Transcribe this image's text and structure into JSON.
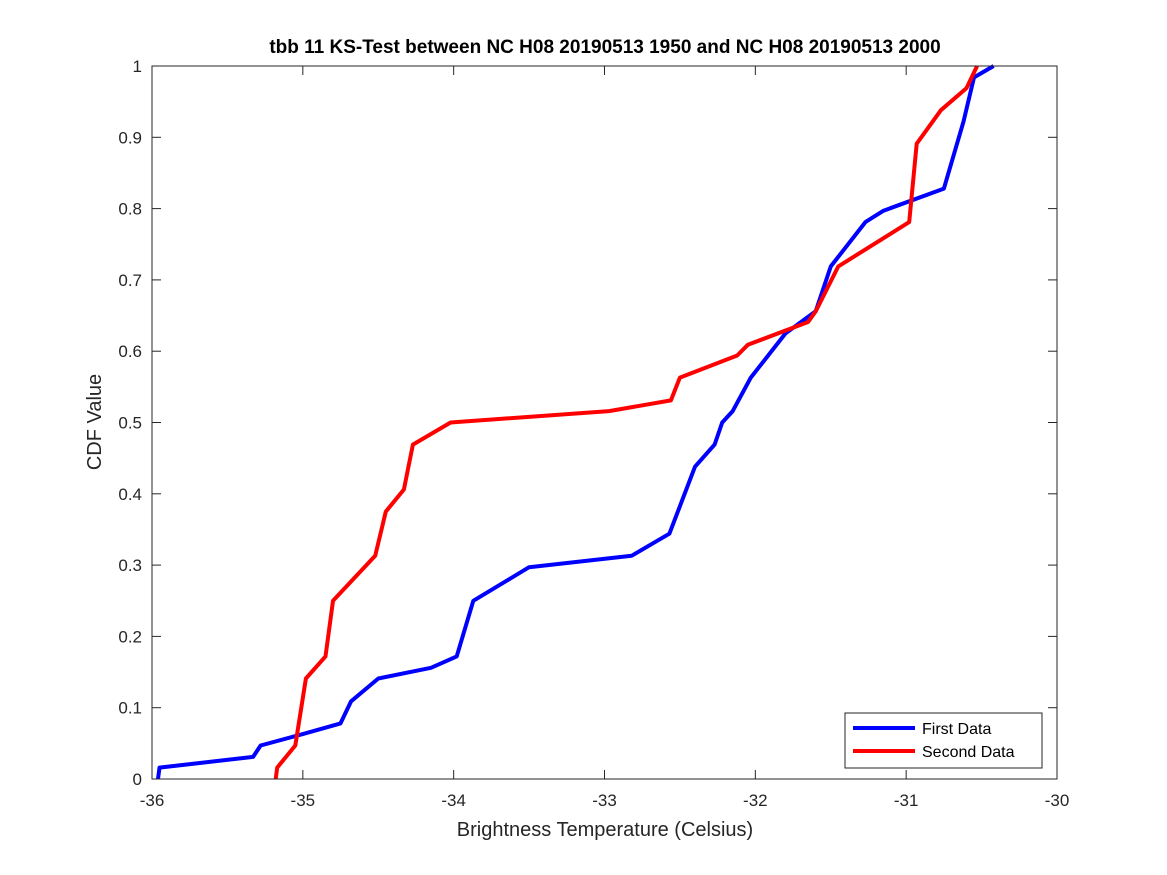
{
  "chart_data": {
    "type": "line",
    "title": "tbb 11 KS-Test between NC H08 20190513 1950 and NC H08 20190513 2000",
    "xlabel": "Brightness Temperature (Celsius)",
    "ylabel": "CDF Value",
    "xlim": [
      -36,
      -30
    ],
    "ylim": [
      0,
      1
    ],
    "xticks": [
      -36,
      -35,
      -34,
      -33,
      -32,
      -31,
      -30
    ],
    "xtick_labels": [
      "-36",
      "-35",
      "-34",
      "-33",
      "-32",
      "-31",
      "-30"
    ],
    "yticks": [
      0,
      0.1,
      0.2,
      0.3,
      0.4,
      0.5,
      0.6,
      0.7,
      0.8,
      0.9,
      1
    ],
    "ytick_labels": [
      "0",
      "0.1",
      "0.2",
      "0.3",
      "0.4",
      "0.5",
      "0.6",
      "0.7",
      "0.8",
      "0.9",
      "1"
    ],
    "grid": false,
    "legend_position": "bottom-right",
    "series": [
      {
        "name": "First Data",
        "color": "#0000ff",
        "x": [
          -35.96,
          -35.95,
          -35.33,
          -35.28,
          -35.0,
          -34.75,
          -34.68,
          -34.5,
          -34.15,
          -33.98,
          -33.87,
          -33.5,
          -32.82,
          -32.57,
          -32.4,
          -32.27,
          -32.22,
          -32.15,
          -32.03,
          -31.8,
          -31.6,
          -31.5,
          -31.27,
          -31.15,
          -30.75,
          -30.62,
          -30.55,
          -30.42
        ],
        "y": [
          0.0,
          0.016,
          0.031,
          0.047,
          0.063,
          0.078,
          0.109,
          0.141,
          0.156,
          0.172,
          0.25,
          0.297,
          0.313,
          0.344,
          0.438,
          0.469,
          0.5,
          0.516,
          0.563,
          0.625,
          0.656,
          0.719,
          0.781,
          0.797,
          0.828,
          0.922,
          0.984,
          1.0
        ]
      },
      {
        "name": "Second Data",
        "color": "#ff0000",
        "x": [
          -35.18,
          -35.17,
          -35.05,
          -34.98,
          -34.85,
          -34.8,
          -34.52,
          -34.45,
          -34.33,
          -34.27,
          -34.02,
          -32.97,
          -32.56,
          -32.5,
          -32.12,
          -32.05,
          -31.65,
          -31.6,
          -31.45,
          -30.98,
          -30.93,
          -30.77,
          -30.6,
          -30.53
        ],
        "y": [
          0.0,
          0.016,
          0.047,
          0.141,
          0.172,
          0.25,
          0.313,
          0.375,
          0.406,
          0.469,
          0.5,
          0.516,
          0.531,
          0.563,
          0.594,
          0.609,
          0.641,
          0.656,
          0.719,
          0.781,
          0.891,
          0.938,
          0.969,
          1.0
        ]
      }
    ]
  }
}
